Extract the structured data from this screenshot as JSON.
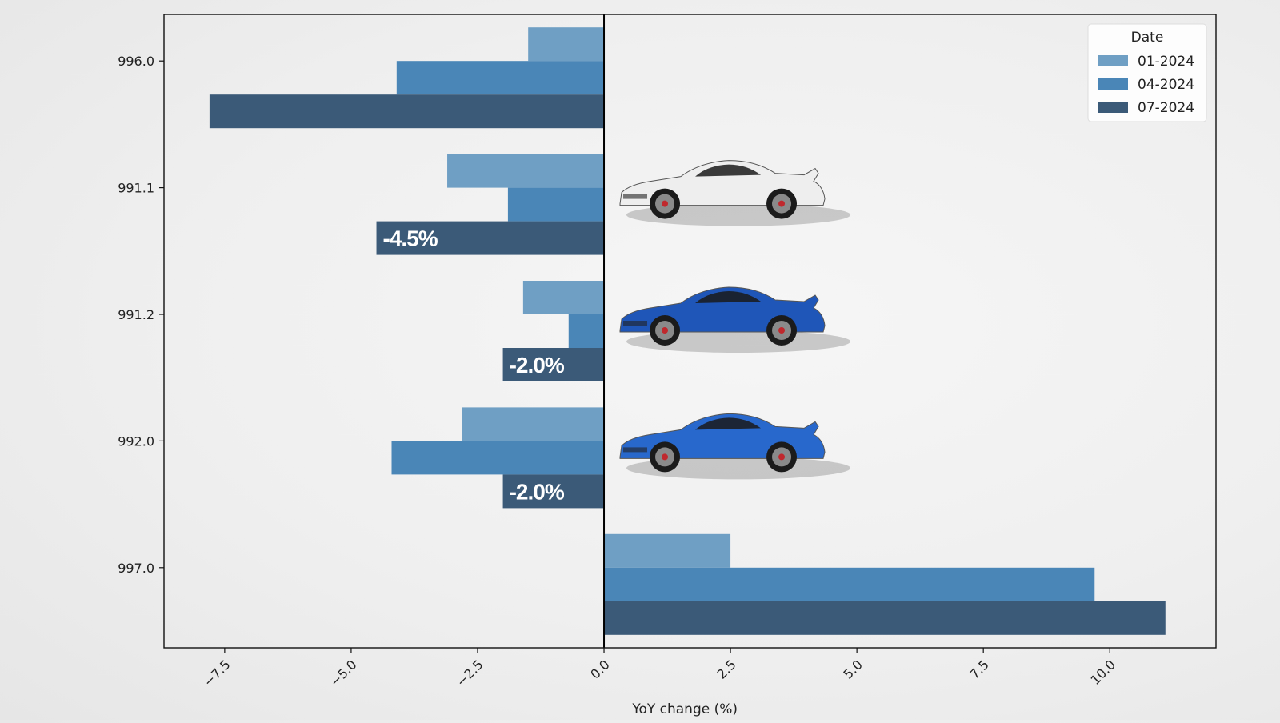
{
  "chart_data": {
    "type": "bar",
    "orientation": "horizontal",
    "title": "",
    "xlabel": "YoY change (%)",
    "ylabel": "",
    "xlim": [
      -8.7,
      12.1
    ],
    "xticks": [
      "−7.5",
      "−5.0",
      "−2.5",
      "0.0",
      "2.5",
      "5.0",
      "7.5",
      "10.0"
    ],
    "xtick_values": [
      -7.5,
      -5.0,
      -2.5,
      0.0,
      2.5,
      5.0,
      7.5,
      10.0
    ],
    "categories": [
      "996.0",
      "991.1",
      "991.2",
      "992.0",
      "997.0"
    ],
    "series": [
      {
        "name": "01-2024",
        "color": "#6f9fc4",
        "values": [
          -1.5,
          -3.1,
          -1.6,
          -2.8,
          2.5
        ]
      },
      {
        "name": "04-2024",
        "color": "#4a86b7",
        "values": [
          -4.1,
          -1.9,
          -0.7,
          -4.2,
          9.7
        ]
      },
      {
        "name": "07-2024",
        "color": "#3b5a78",
        "values": [
          -7.8,
          -4.5,
          -2.0,
          -2.0,
          11.1
        ]
      }
    ],
    "legend": {
      "title": "Date",
      "position": "top-right"
    },
    "annotations": [
      {
        "category": "991.1",
        "series": "07-2024",
        "text": "-4.5%"
      },
      {
        "category": "991.2",
        "series": "07-2024",
        "text": "-2.0%"
      },
      {
        "category": "992.0",
        "series": "07-2024",
        "text": "-2.0%"
      }
    ],
    "grid": false,
    "images": [
      {
        "category": "991.1",
        "icon": "white-sports-car-icon",
        "color": "#eeeeee"
      },
      {
        "category": "991.2",
        "icon": "blue-sports-car-icon",
        "color": "#1f56b8"
      },
      {
        "category": "992.0",
        "icon": "blue-sports-car-icon",
        "color": "#2868cc"
      }
    ]
  }
}
